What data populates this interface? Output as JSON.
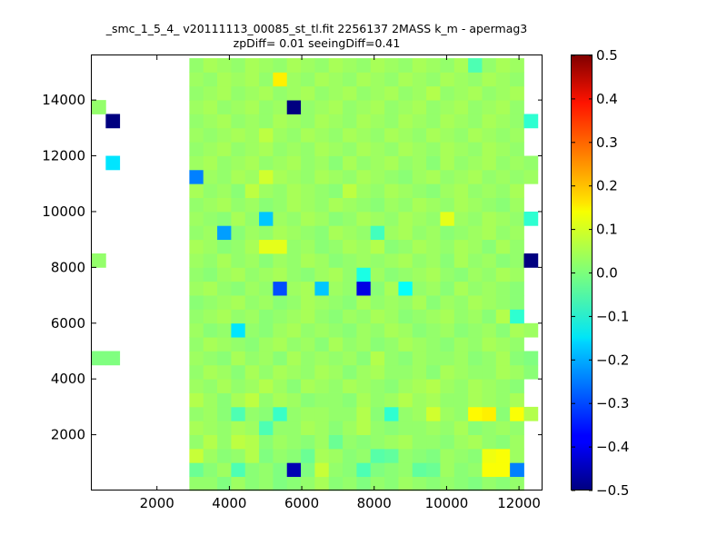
{
  "chart_data": {
    "type": "heatmap",
    "title": "_smc_1_5_4_ v20111113_00085_st_tl.fit 2256137 2MASS k_m - apermag3",
    "subtitle": "zpDiff= 0.01 seeingDiff=0.41",
    "xlabel": "",
    "ylabel": "",
    "xlim": [
      200,
      12650
    ],
    "ylim": [
      0,
      15600
    ],
    "x_ticks": [
      2000,
      4000,
      6000,
      8000,
      10000,
      12000
    ],
    "y_ticks": [
      2000,
      4000,
      6000,
      8000,
      10000,
      12000,
      14000
    ],
    "grid": false,
    "colormap": "jet",
    "colorbar": {
      "min": -0.5,
      "max": 0.5,
      "ticks": [
        -0.5,
        -0.4,
        -0.3,
        -0.2,
        -0.1,
        0.0,
        0.1,
        0.2,
        0.3,
        0.4,
        0.5
      ],
      "tick_labels": [
        "−0.5",
        "−0.4",
        "−0.3",
        "−0.2",
        "−0.1",
        "0.0",
        "0.1",
        "0.2",
        "0.3",
        "0.4",
        "0.5"
      ]
    },
    "bins": {
      "x_edges_start": 200,
      "x_bin_width": 385,
      "nx": 32,
      "y_edges_start": 0,
      "y_bin_width": 500,
      "ny": 31
    },
    "x_extent_by_row": {
      "default": [
        7,
        30
      ],
      "exceptions": [
        {
          "rows": [
            0,
            1,
            2,
            3,
            4,
            5,
            6,
            7,
            8,
            9,
            10,
            11,
            12,
            13,
            14,
            15,
            16,
            17,
            18,
            19,
            20,
            21,
            22,
            23,
            24,
            25,
            26,
            27,
            28,
            29,
            30
          ],
          "cols": [
            7,
            29
          ]
        }
      ]
    },
    "values": [
      [
        null,
        null,
        null,
        null,
        null,
        null,
        null,
        0.02,
        0.02,
        0.0,
        0.03,
        0.01,
        0.02,
        0.0,
        0.01,
        0.02,
        0.04,
        0.01,
        0.02,
        0.0,
        0.02,
        0.01,
        0.03,
        0.02,
        0.01,
        0.02,
        0.01,
        0.0,
        0.02,
        0.01,
        0.02,
        null
      ],
      [
        null,
        null,
        null,
        null,
        null,
        null,
        null,
        -0.02,
        0.01,
        0.03,
        -0.05,
        0.01,
        0.02,
        0.0,
        -0.45,
        0.0,
        0.07,
        0.02,
        0.01,
        -0.05,
        0.0,
        0.01,
        0.02,
        -0.03,
        -0.02,
        0.03,
        0.01,
        0.02,
        0.12,
        0.12,
        -0.25,
        null
      ],
      [
        null,
        null,
        null,
        null,
        null,
        null,
        null,
        0.07,
        0.03,
        0.01,
        0.02,
        0.05,
        0.0,
        0.02,
        0.01,
        -0.02,
        0.04,
        0.03,
        0.01,
        0.02,
        -0.04,
        -0.03,
        0.02,
        0.01,
        0.0,
        0.03,
        0.02,
        0.01,
        0.11,
        0.12,
        0.03,
        null
      ],
      [
        null,
        null,
        null,
        null,
        null,
        null,
        null,
        0.02,
        0.05,
        0.02,
        0.06,
        0.05,
        0.01,
        0.03,
        0.02,
        0.01,
        0.03,
        -0.02,
        0.02,
        0.01,
        0.02,
        0.03,
        0.04,
        0.02,
        0.02,
        0.01,
        0.03,
        0.04,
        0.02,
        0.01,
        0.03,
        null
      ],
      [
        null,
        null,
        null,
        null,
        null,
        null,
        null,
        0.04,
        0.03,
        0.02,
        0.04,
        0.03,
        -0.05,
        0.02,
        0.02,
        0.04,
        0.03,
        0.01,
        0.03,
        0.05,
        0.02,
        0.01,
        0.02,
        0.02,
        0.03,
        0.02,
        0.04,
        0.01,
        0.02,
        0.03,
        0.02,
        null
      ],
      [
        null,
        null,
        null,
        null,
        null,
        null,
        null,
        0.02,
        0.03,
        0.01,
        -0.05,
        0.02,
        0.01,
        -0.07,
        0.02,
        0.03,
        0.03,
        0.02,
        0.02,
        0.05,
        0.01,
        -0.08,
        0.02,
        0.03,
        0.08,
        0.03,
        0.02,
        0.13,
        0.14,
        0.01,
        0.12,
        0.05
      ],
      [
        null,
        null,
        null,
        null,
        null,
        null,
        null,
        0.05,
        0.03,
        0.01,
        0.04,
        0.06,
        0.02,
        0.04,
        0.03,
        0.01,
        0.02,
        0.02,
        0.01,
        0.04,
        0.02,
        0.03,
        0.05,
        0.03,
        0.04,
        0.02,
        0.02,
        0.04,
        0.03,
        0.02,
        0.04,
        null
      ],
      [
        null,
        null,
        null,
        null,
        null,
        null,
        null,
        0.03,
        0.02,
        0.04,
        0.02,
        0.03,
        0.05,
        0.03,
        0.01,
        0.04,
        0.03,
        0.02,
        0.04,
        0.03,
        0.02,
        0.01,
        0.03,
        0.04,
        0.05,
        0.03,
        0.02,
        0.04,
        0.03,
        0.02,
        0.01,
        null
      ],
      [
        null,
        null,
        null,
        null,
        null,
        null,
        null,
        0.02,
        0.04,
        0.03,
        0.01,
        0.04,
        0.02,
        0.04,
        0.03,
        0.02,
        0.04,
        0.03,
        0.01,
        0.03,
        0.04,
        0.02,
        0.02,
        0.03,
        0.01,
        0.04,
        0.03,
        0.02,
        0.02,
        0.04,
        0.03,
        0.01
      ],
      [
        0.0,
        0.0,
        null,
        null,
        null,
        null,
        null,
        0.03,
        0.02,
        0.01,
        0.04,
        0.02,
        0.03,
        0.01,
        0.04,
        0.02,
        0.03,
        0.02,
        0.03,
        0.01,
        0.05,
        0.02,
        0.01,
        0.03,
        0.02,
        0.02,
        0.03,
        0.01,
        0.02,
        0.04,
        0.01,
        0.0
      ],
      [
        null,
        null,
        null,
        null,
        null,
        null,
        null,
        0.02,
        0.04,
        0.03,
        0.02,
        0.01,
        0.03,
        0.04,
        0.02,
        0.03,
        0.01,
        0.04,
        0.02,
        0.03,
        0.01,
        0.02,
        0.04,
        0.03,
        0.02,
        0.01,
        0.03,
        0.02,
        0.04,
        0.03,
        0.02,
        null
      ],
      [
        null,
        null,
        null,
        null,
        null,
        null,
        null,
        0.03,
        0.01,
        0.02,
        -0.15,
        0.02,
        0.01,
        0.03,
        0.04,
        0.02,
        0.03,
        0.02,
        0.01,
        0.03,
        0.02,
        0.04,
        0.03,
        0.01,
        0.02,
        0.03,
        0.01,
        0.02,
        0.03,
        0.01,
        0.04,
        0.03
      ],
      [
        null,
        null,
        null,
        null,
        null,
        null,
        null,
        0.02,
        0.03,
        0.04,
        0.02,
        0.03,
        0.01,
        0.02,
        0.03,
        0.04,
        0.02,
        0.01,
        0.03,
        0.02,
        0.04,
        0.03,
        0.01,
        0.02,
        0.03,
        0.04,
        0.02,
        0.03,
        0.01,
        0.05,
        -0.08,
        null
      ],
      [
        null,
        null,
        null,
        null,
        null,
        null,
        null,
        0.01,
        0.02,
        0.03,
        0.04,
        0.02,
        0.03,
        0.01,
        0.02,
        0.04,
        0.03,
        0.02,
        0.01,
        0.04,
        0.02,
        0.03,
        0.02,
        0.04,
        0.01,
        0.03,
        0.02,
        0.04,
        0.03,
        0.02,
        0.01,
        null
      ],
      [
        null,
        null,
        null,
        null,
        null,
        null,
        null,
        0.03,
        0.04,
        0.02,
        0.01,
        0.03,
        0.02,
        -0.3,
        0.03,
        0.04,
        -0.18,
        0.03,
        0.02,
        -0.4,
        0.01,
        0.04,
        -0.12,
        0.02,
        0.03,
        0.01,
        0.04,
        0.02,
        0.03,
        0.02,
        0.01,
        null
      ],
      [
        null,
        null,
        null,
        null,
        null,
        null,
        null,
        0.02,
        0.01,
        0.03,
        0.04,
        0.02,
        0.03,
        0.04,
        0.02,
        0.01,
        0.03,
        0.04,
        0.02,
        -0.1,
        0.03,
        0.01,
        0.02,
        0.03,
        0.04,
        0.02,
        0.01,
        0.03,
        0.02,
        0.04,
        0.03,
        null
      ],
      [
        0.02,
        null,
        null,
        null,
        null,
        null,
        null,
        0.03,
        0.02,
        0.04,
        0.02,
        0.03,
        0.01,
        0.03,
        0.02,
        0.04,
        0.03,
        0.01,
        0.02,
        0.03,
        0.02,
        0.03,
        0.04,
        0.02,
        0.03,
        0.01,
        0.04,
        0.02,
        0.03,
        0.01,
        0.02,
        -0.5
      ],
      [
        null,
        null,
        null,
        null,
        null,
        null,
        null,
        0.04,
        0.03,
        0.01,
        0.02,
        0.04,
        0.1,
        0.1,
        0.02,
        0.03,
        0.01,
        0.02,
        0.04,
        0.03,
        0.05,
        0.01,
        0.02,
        0.04,
        0.03,
        0.02,
        0.04,
        0.03,
        0.01,
        0.04,
        0.02,
        null
      ],
      [
        null,
        null,
        null,
        null,
        null,
        null,
        null,
        0.02,
        0.03,
        -0.22,
        0.01,
        0.03,
        0.02,
        0.04,
        0.03,
        0.02,
        0.01,
        0.04,
        0.03,
        0.02,
        -0.06,
        0.03,
        0.04,
        0.02,
        0.03,
        0.01,
        0.02,
        0.03,
        0.04,
        0.02,
        0.03,
        null
      ],
      [
        null,
        null,
        null,
        null,
        null,
        null,
        null,
        0.03,
        0.02,
        0.01,
        0.04,
        0.02,
        -0.18,
        0.03,
        0.02,
        0.04,
        0.03,
        0.01,
        0.02,
        0.04,
        0.03,
        0.02,
        0.04,
        0.03,
        0.02,
        0.1,
        0.03,
        0.02,
        0.04,
        0.03,
        0.02,
        -0.08
      ],
      [
        null,
        null,
        null,
        null,
        null,
        null,
        null,
        0.02,
        0.03,
        0.04,
        0.02,
        0.03,
        0.01,
        0.02,
        0.04,
        0.03,
        0.02,
        0.04,
        0.03,
        0.02,
        0.01,
        0.03,
        0.02,
        0.04,
        0.03,
        0.02,
        0.04,
        0.03,
        0.02,
        0.01,
        0.03,
        null
      ],
      [
        null,
        null,
        null,
        null,
        null,
        null,
        null,
        0.04,
        0.02,
        0.03,
        0.01,
        0.06,
        0.03,
        0.02,
        0.04,
        0.03,
        0.02,
        0.01,
        0.06,
        0.03,
        0.02,
        0.04,
        0.03,
        0.02,
        0.01,
        0.03,
        0.04,
        0.02,
        0.03,
        0.02,
        0.04,
        null
      ],
      [
        null,
        null,
        null,
        null,
        null,
        null,
        null,
        -0.25,
        0.03,
        0.02,
        0.04,
        0.03,
        0.08,
        0.04,
        0.03,
        0.02,
        0.04,
        0.03,
        0.02,
        0.04,
        0.03,
        0.02,
        0.01,
        0.03,
        0.04,
        0.02,
        0.03,
        0.04,
        0.02,
        0.03,
        0.02,
        0.03
      ],
      [
        null,
        -0.15,
        null,
        null,
        null,
        null,
        null,
        0.03,
        0.04,
        0.02,
        0.03,
        0.04,
        0.02,
        0.03,
        0.04,
        0.02,
        0.03,
        0.01,
        0.04,
        0.02,
        0.03,
        0.04,
        0.02,
        0.03,
        0.01,
        0.04,
        0.02,
        0.03,
        0.04,
        0.02,
        0.03,
        0.02
      ],
      [
        null,
        null,
        null,
        null,
        null,
        null,
        null,
        0.02,
        0.03,
        0.04,
        0.02,
        0.03,
        0.04,
        0.02,
        0.03,
        0.02,
        0.04,
        0.03,
        0.02,
        0.04,
        0.03,
        0.02,
        0.04,
        0.03,
        0.02,
        0.04,
        0.03,
        0.02,
        0.04,
        0.03,
        0.02,
        null
      ],
      [
        null,
        null,
        null,
        null,
        null,
        null,
        null,
        0.03,
        0.02,
        0.03,
        0.04,
        0.03,
        0.06,
        0.03,
        0.02,
        0.04,
        0.03,
        0.02,
        0.04,
        0.03,
        0.02,
        0.04,
        0.03,
        0.02,
        0.04,
        0.03,
        0.02,
        0.04,
        0.03,
        0.02,
        0.03,
        null
      ],
      [
        null,
        -0.5,
        null,
        null,
        null,
        null,
        null,
        0.02,
        0.03,
        0.04,
        0.02,
        0.03,
        0.02,
        0.04,
        0.03,
        0.02,
        0.04,
        0.03,
        0.02,
        0.04,
        0.03,
        0.02,
        0.04,
        0.03,
        0.02,
        0.04,
        0.03,
        0.02,
        0.04,
        0.03,
        0.02,
        -0.08
      ],
      [
        0.02,
        null,
        null,
        null,
        null,
        null,
        null,
        0.03,
        0.04,
        0.02,
        0.03,
        0.04,
        0.02,
        0.03,
        -0.5,
        0.02,
        0.03,
        0.04,
        0.02,
        0.03,
        0.04,
        0.02,
        0.03,
        0.04,
        0.02,
        0.03,
        0.04,
        0.02,
        0.03,
        0.04,
        0.02,
        null
      ],
      [
        null,
        null,
        null,
        null,
        null,
        null,
        null,
        0.02,
        0.03,
        0.04,
        0.02,
        0.03,
        0.04,
        0.02,
        0.03,
        0.04,
        0.02,
        0.03,
        0.04,
        0.02,
        0.03,
        0.04,
        0.02,
        0.03,
        0.05,
        0.02,
        0.03,
        0.04,
        0.02,
        0.03,
        0.04,
        null
      ],
      [
        null,
        null,
        null,
        null,
        null,
        null,
        null,
        0.03,
        0.02,
        0.04,
        0.03,
        0.04,
        0.02,
        0.14,
        0.03,
        0.02,
        0.04,
        0.03,
        0.02,
        0.04,
        0.03,
        0.02,
        0.04,
        0.03,
        0.02,
        0.04,
        0.03,
        0.02,
        0.04,
        0.03,
        0.02,
        null
      ],
      [
        null,
        null,
        null,
        null,
        null,
        null,
        null,
        0.02,
        0.04,
        0.03,
        0.02,
        0.04,
        0.03,
        0.02,
        0.04,
        0.03,
        0.02,
        0.04,
        0.03,
        0.02,
        0.04,
        0.03,
        0.02,
        0.04,
        0.03,
        0.02,
        0.04,
        -0.05,
        0.02,
        0.04,
        0.03,
        null
      ]
    ]
  }
}
